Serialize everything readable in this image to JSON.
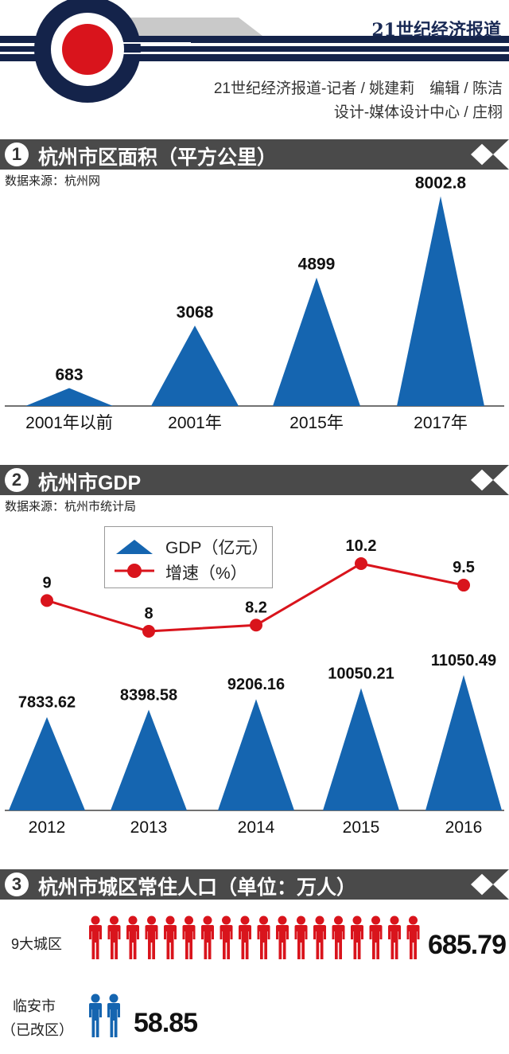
{
  "header": {
    "brand": "21世纪经济报道",
    "credit_line1": "21世纪经济报道-记者 / 姚建莉　编辑 / 陈洁",
    "credit_line2": "设计-媒体设计中心 / 庄栩"
  },
  "sections": [
    {
      "number": "1",
      "title": "杭州市区面积（平方公里）",
      "source": "数据来源：杭州网"
    },
    {
      "number": "2",
      "title": "杭州市GDP",
      "source": "数据来源：杭州市统计局"
    },
    {
      "number": "3",
      "title": "杭州市城区常住人口（单位：万人）"
    }
  ],
  "colors": {
    "blue": "#1565b0",
    "red": "#d9141c",
    "dark_bar": "#4a4a4a",
    "navy": "#14234a"
  },
  "chart_data": [
    {
      "type": "bar",
      "marker": "triangle",
      "title": "杭州市区面积（平方公里）",
      "categories": [
        "2001年以前",
        "2001年",
        "2015年",
        "2017年"
      ],
      "values": [
        683,
        3068,
        4899,
        8002.8
      ],
      "value_labels": [
        "683",
        "3068",
        "4899",
        "8002.8"
      ],
      "ylim": [
        0,
        8500
      ]
    },
    {
      "type": "bar+line",
      "title": "杭州市GDP",
      "categories": [
        "2012",
        "2013",
        "2014",
        "2015",
        "2016"
      ],
      "series": [
        {
          "name": "GDP（亿元）",
          "type": "bar",
          "values": [
            7833.62,
            8398.58,
            9206.16,
            10050.21,
            11050.49
          ],
          "value_labels": [
            "7833.62",
            "8398.58",
            "9206.16",
            "10050.21",
            "11050.49"
          ]
        },
        {
          "name": "增速（%）",
          "type": "line",
          "values": [
            9,
            8,
            8.2,
            10.2,
            9.5
          ],
          "value_labels": [
            "9",
            "8",
            "8.2",
            "10.2",
            "9.5"
          ]
        }
      ],
      "legend": [
        "GDP（亿元）",
        "增速（%）"
      ],
      "legend_position": "top-left"
    },
    {
      "type": "pictogram",
      "title": "杭州市城区常住人口（单位：万人）",
      "categories": [
        "9大城区",
        "临安市（已改区）"
      ],
      "values": [
        685.79,
        58.85
      ],
      "value_labels": [
        "685.79",
        "58.85"
      ]
    }
  ],
  "population": {
    "row1_label": "9大城区",
    "row1_value": "685.79",
    "row2_label_line1": "临安市",
    "row2_label_line2": "（已改区）",
    "row2_value": "58.85"
  }
}
